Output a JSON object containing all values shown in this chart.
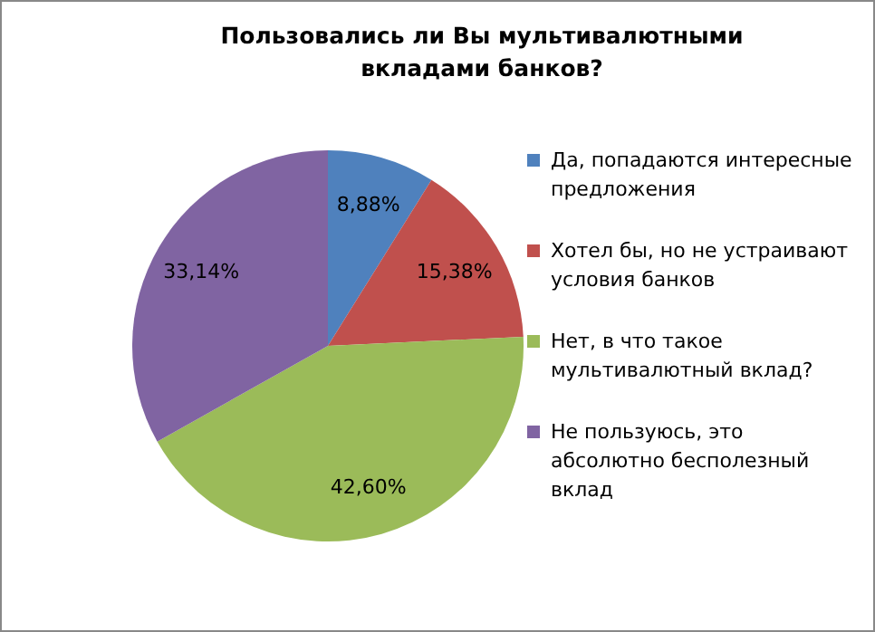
{
  "chart_data": {
    "type": "pie",
    "title": "Пользовались ли Вы мультивалютными вкладами банков?",
    "categories": [
      "Да, попадаются интересные предложения",
      "Хотел бы, но не устраивают условия банков",
      "Нет, в что такое мультивалютный вклад?",
      "Не пользуюсь, это абсолютно бесполезный вклад"
    ],
    "values": [
      8.88,
      15.38,
      42.6,
      33.14
    ],
    "colors": [
      "#4f81bd",
      "#c0504d",
      "#9bbb59",
      "#8064a2"
    ],
    "value_labels": [
      "8,88%",
      "15,38%",
      "42,60%",
      "33,14%"
    ],
    "legend": "right"
  }
}
